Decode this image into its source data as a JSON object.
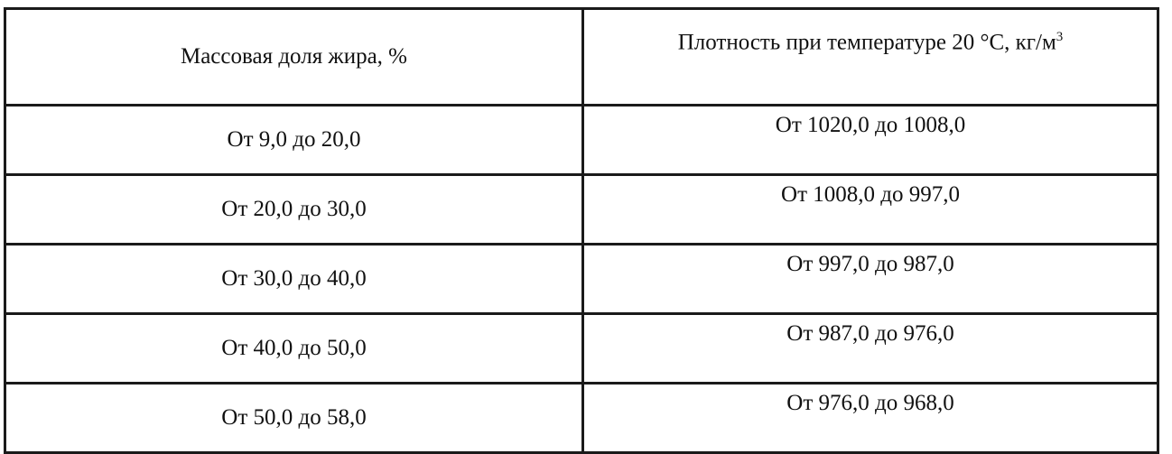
{
  "table": {
    "headers": [
      "Массовая доля жира, %",
      "Плотность при температуре 20 °С, кг/м",
      "3"
    ],
    "rows": [
      [
        "От 9,0 до 20,0",
        "От 1020,0 до 1008,0"
      ],
      [
        "От 20,0 до 30,0",
        "От 1008,0 до 997,0"
      ],
      [
        "От 30,0 до 40,0",
        "От 997,0 до 987,0"
      ],
      [
        "От 40,0 до 50,0",
        "От 987,0 до 976,0"
      ],
      [
        "От 50,0 до 58,0",
        "От 976,0 до 968,0"
      ]
    ]
  }
}
